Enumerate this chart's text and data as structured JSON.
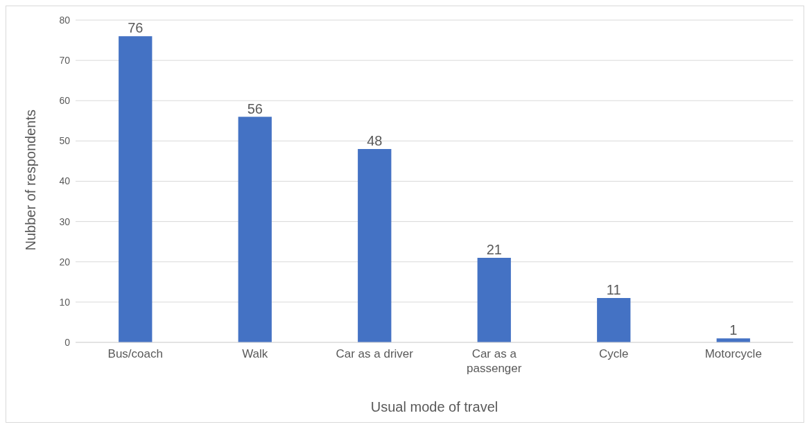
{
  "chart_data": {
    "type": "bar",
    "xlabel": "Usual mode of travel",
    "ylabel": "Nubber of respondents",
    "categories": [
      "Bus/coach",
      "Walk",
      "Car as a driver",
      "Car as a passenger",
      "Cycle",
      "Motorcycle"
    ],
    "values": [
      76,
      56,
      48,
      21,
      11,
      1
    ],
    "color": "#4472c4",
    "ylim": [
      0,
      80
    ],
    "yticks": [
      0,
      10,
      20,
      30,
      40,
      50,
      60,
      70,
      80
    ],
    "grid": "y",
    "data_labels": true
  }
}
